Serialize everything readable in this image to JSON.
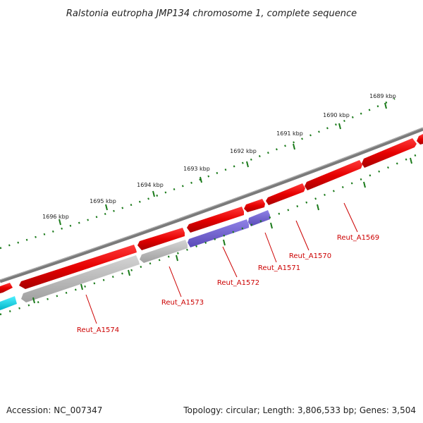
{
  "title": "Ralstonia eutropha JMP134 chromosome 1, complete sequence",
  "footer": {
    "accession": "Accession: NC_007347",
    "summary": "Topology: circular; Length: 3,806,533 bp; Genes: 3,504"
  },
  "scale": {
    "unit": "kbp",
    "ticks": [
      {
        "label": "1689 kbp"
      },
      {
        "label": "1690 kbp"
      },
      {
        "label": "1691 kbp"
      },
      {
        "label": "1692 kbp"
      },
      {
        "label": "1693 kbp"
      },
      {
        "label": "1694 kbp"
      },
      {
        "label": "1695 kbp"
      },
      {
        "label": "1696 kbp"
      }
    ]
  },
  "genes": [
    {
      "name": "Reut_A1569"
    },
    {
      "name": "Reut_A1570"
    },
    {
      "name": "Reut_A1571"
    },
    {
      "name": "Reut_A1572"
    },
    {
      "name": "Reut_A1573"
    },
    {
      "name": "Reut_A1574"
    }
  ],
  "colors": {
    "backbone": "#7a7a7a",
    "gene_red": "#e60000",
    "gene_grey": "#b3b3b3",
    "gene_blue": "#6f5fcf",
    "gene_cyan": "#00d5e6",
    "tick_green": "#1a7a1a",
    "label_red": "#cc0000"
  }
}
